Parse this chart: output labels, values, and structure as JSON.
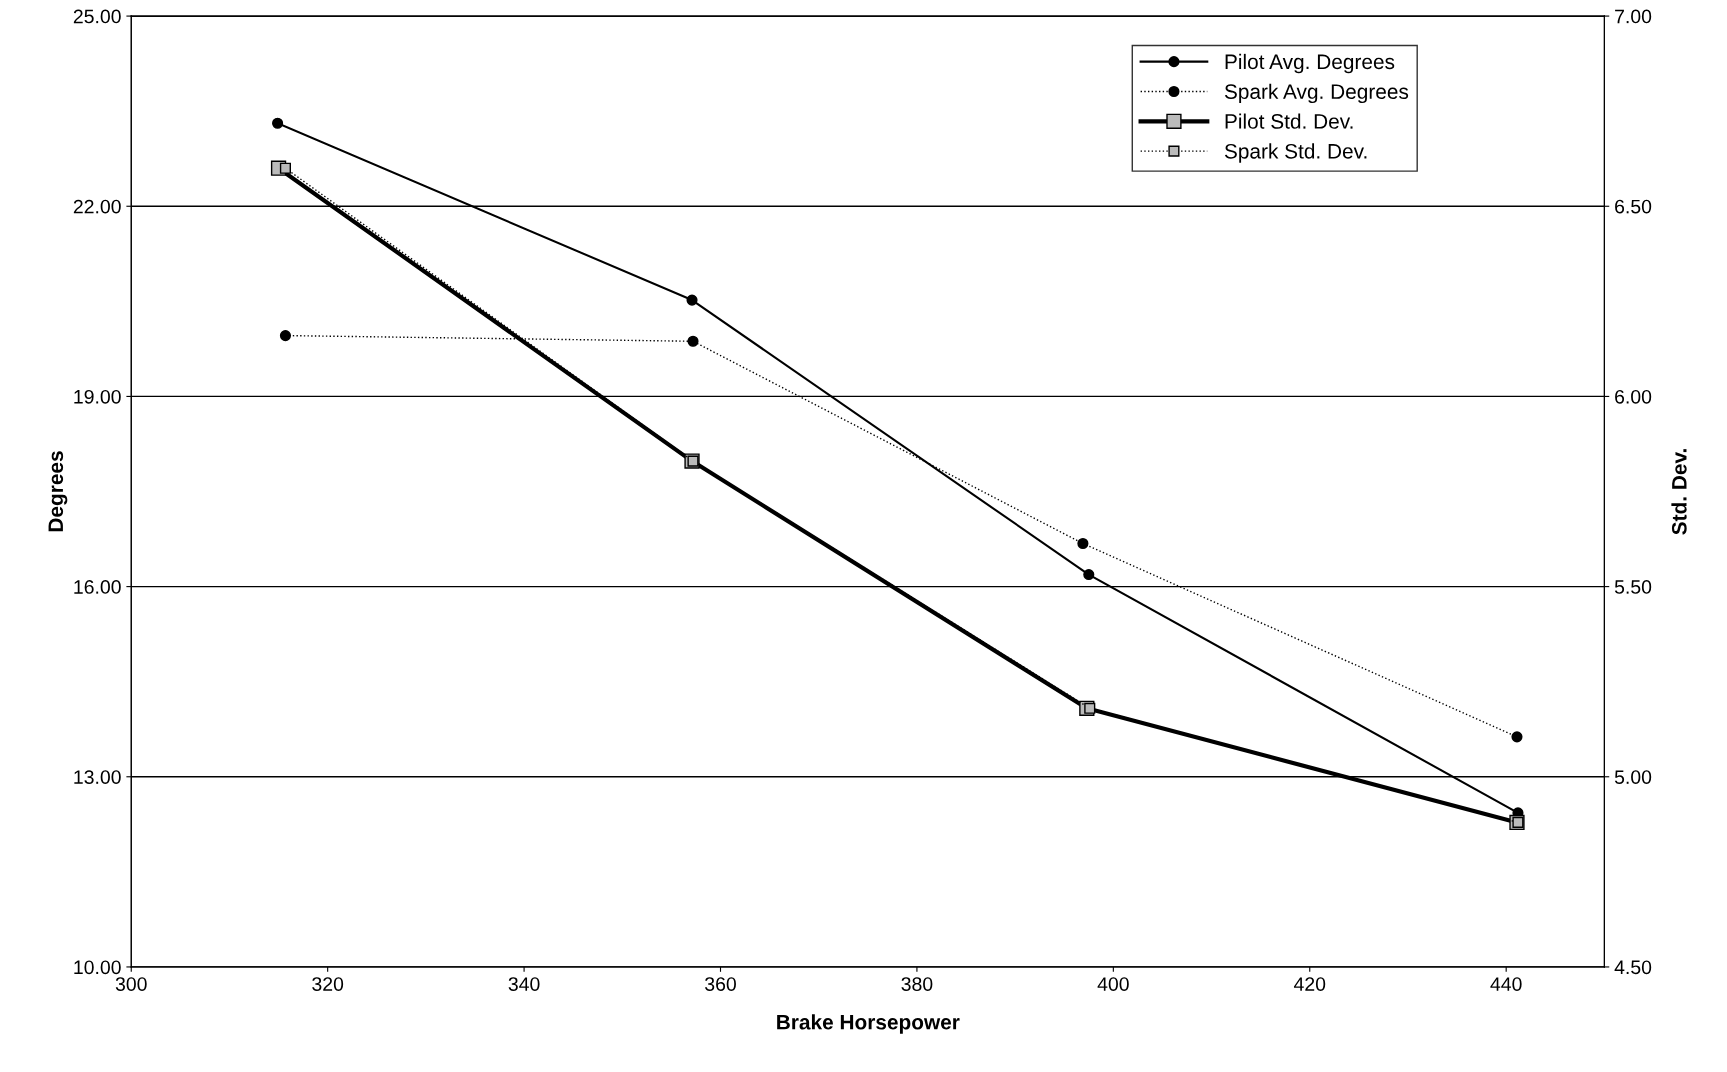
{
  "chart_data": {
    "type": "line",
    "xlabel": "Brake Horsepower",
    "ylabel": "Degrees",
    "y2label": "Std. Dev.",
    "xlim": [
      300,
      450
    ],
    "xticks": [
      300,
      320,
      340,
      360,
      380,
      400,
      420,
      440
    ],
    "ylim": [
      10,
      25
    ],
    "yticks": [
      {
        "value": 10,
        "label": "10.00"
      },
      {
        "value": 13,
        "label": "13.00"
      },
      {
        "value": 16,
        "label": "16.00"
      },
      {
        "value": 19,
        "label": "19.00"
      },
      {
        "value": 22,
        "label": "22.00"
      },
      {
        "value": 25,
        "label": "25.00"
      }
    ],
    "y2lim": [
      4.5,
      7
    ],
    "y2ticks": [
      {
        "value": 4.5,
        "label": "4.50"
      },
      {
        "value": 5,
        "label": "5.00"
      },
      {
        "value": 5.5,
        "label": "5.50"
      },
      {
        "value": 6,
        "label": "6.00"
      },
      {
        "value": 6.5,
        "label": "6.50"
      },
      {
        "value": 7,
        "label": "7.00"
      }
    ],
    "grid": "y",
    "legend": "top right",
    "series": [
      {
        "name": "Pilot Avg. Degrees",
        "color": "#000000",
        "marker": "circle",
        "line_style": "solid",
        "x": [
          314.9,
          357.1,
          397.5,
          441.2
        ],
        "values": [
          23.31,
          20.52,
          16.19,
          12.43
        ]
      },
      {
        "name": "Spark Avg. Degrees",
        "color": "#000000",
        "marker": "circle",
        "line_style": "dotted",
        "x": [
          315.7,
          357.2,
          396.9,
          441.1
        ],
        "values": [
          19.96,
          19.87,
          16.68,
          13.63
        ]
      },
      {
        "name": "Pilot Std. Dev.",
        "color": "#000000",
        "marker": "square",
        "line_style": "solid",
        "axis": "y2",
        "x": [
          315.0,
          357.1,
          397.3,
          441.1
        ],
        "values": [
          6.6,
          5.83,
          5.18,
          4.88
        ]
      },
      {
        "name": "Spark Std. Dev.",
        "color": "#000000",
        "marker": "square",
        "line_style": "dotted",
        "axis": "y2",
        "x": [
          315.7,
          357.2,
          397.6,
          441.2
        ],
        "values": [
          6.6,
          5.83,
          5.18,
          4.88
        ]
      }
    ]
  }
}
